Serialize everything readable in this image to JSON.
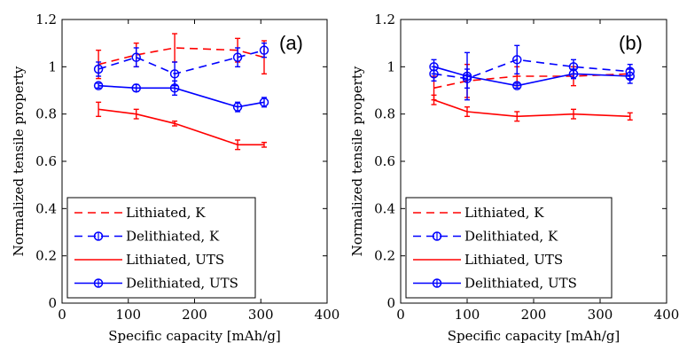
{
  "colors": {
    "lithiated": "#ff0000",
    "delithiated": "#0000ff",
    "axis": "#000000"
  },
  "chart_data": [
    {
      "type": "line",
      "panel_label": "(a)",
      "xlabel": "Specific capacity [mAh/g]",
      "ylabel": "Normalized tensile property",
      "xlim": [
        0,
        400
      ],
      "ylim": [
        0,
        1.2
      ],
      "xticks": [
        "0",
        "100",
        "200",
        "300",
        "400"
      ],
      "yticks": [
        "0",
        "0.2",
        "0.4",
        "0.6",
        "0.8",
        "1",
        "1.2"
      ],
      "grid": false,
      "legend_position": "bottom-left",
      "series": [
        {
          "name": "Lithiated, K",
          "color": "#ff0000",
          "dash": true,
          "marker": "none",
          "x": [
            55,
            112,
            170,
            265,
            305
          ],
          "y": [
            1.01,
            1.05,
            1.08,
            1.07,
            1.04
          ],
          "err": [
            0.06,
            0.05,
            0.06,
            0.05,
            0.07
          ]
        },
        {
          "name": "Delithiated, K",
          "color": "#0000ff",
          "dash": true,
          "marker": "circle",
          "x": [
            55,
            112,
            170,
            265,
            305
          ],
          "y": [
            0.99,
            1.04,
            0.97,
            1.04,
            1.07
          ],
          "err": [
            0.03,
            0.04,
            0.05,
            0.04,
            0.03
          ]
        },
        {
          "name": "Lithiated, UTS",
          "color": "#ff0000",
          "dash": false,
          "marker": "none",
          "x": [
            55,
            112,
            170,
            265,
            305
          ],
          "y": [
            0.82,
            0.8,
            0.76,
            0.67,
            0.67
          ],
          "err": [
            0.03,
            0.02,
            0.01,
            0.02,
            0.01
          ]
        },
        {
          "name": "Delithiated, UTS",
          "color": "#0000ff",
          "dash": false,
          "marker": "circle",
          "x": [
            55,
            112,
            170,
            265,
            305
          ],
          "y": [
            0.92,
            0.91,
            0.91,
            0.83,
            0.85
          ],
          "err": [
            0.01,
            0.015,
            0.03,
            0.02,
            0.02
          ]
        }
      ]
    },
    {
      "type": "line",
      "panel_label": "(b)",
      "xlabel": "Specific capacity [mAh/g]",
      "ylabel": "Normalized tensile property",
      "xlim": [
        0,
        400
      ],
      "ylim": [
        0,
        1.2
      ],
      "xticks": [
        "0",
        "100",
        "200",
        "300",
        "400"
      ],
      "yticks": [
        "0",
        "0.2",
        "0.4",
        "0.6",
        "0.8",
        "1",
        "1.2"
      ],
      "grid": false,
      "legend_position": "bottom-left",
      "series": [
        {
          "name": "Lithiated, K",
          "color": "#ff0000",
          "dash": true,
          "marker": "none",
          "x": [
            50,
            100,
            175,
            260,
            345
          ],
          "y": [
            0.91,
            0.94,
            0.96,
            0.96,
            0.97
          ],
          "err": [
            0.05,
            0.07,
            0.04,
            0.04,
            0.02
          ]
        },
        {
          "name": "Delithiated, K",
          "color": "#0000ff",
          "dash": true,
          "marker": "circle",
          "x": [
            50,
            100,
            175,
            260,
            345
          ],
          "y": [
            0.97,
            0.95,
            1.03,
            1.0,
            0.98
          ],
          "err": [
            0.03,
            0.04,
            0.06,
            0.03,
            0.03
          ]
        },
        {
          "name": "Lithiated, UTS",
          "color": "#ff0000",
          "dash": false,
          "marker": "none",
          "x": [
            50,
            100,
            175,
            260,
            345
          ],
          "y": [
            0.86,
            0.81,
            0.79,
            0.8,
            0.79
          ],
          "err": [
            0.02,
            0.02,
            0.02,
            0.02,
            0.015
          ]
        },
        {
          "name": "Delithiated, UTS",
          "color": "#0000ff",
          "dash": false,
          "marker": "circle",
          "x": [
            50,
            100,
            175,
            260,
            345
          ],
          "y": [
            1.0,
            0.96,
            0.92,
            0.97,
            0.96
          ],
          "err": [
            0.03,
            0.1,
            0.01,
            0.02,
            0.03
          ]
        }
      ]
    }
  ]
}
